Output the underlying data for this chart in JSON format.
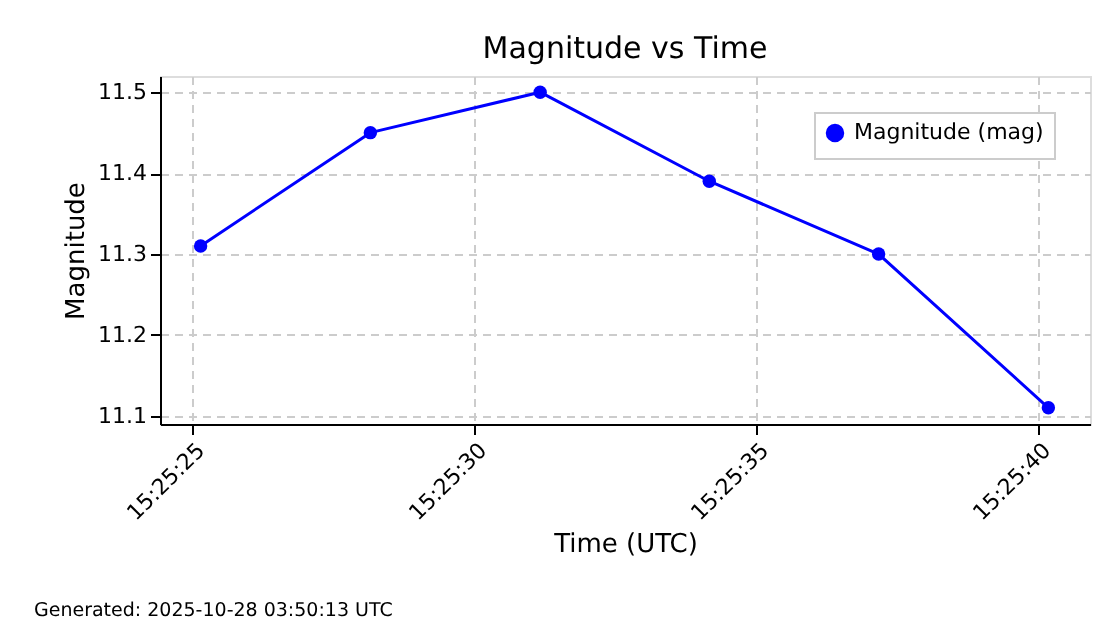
{
  "chart_data": {
    "type": "line",
    "title": "Magnitude vs Time",
    "xlabel": "Time (UTC)",
    "ylabel": "Magnitude",
    "x": [
      15.423653,
      15.424489,
      15.425325,
      15.426158,
      15.426992,
      15.427828
    ],
    "series": [
      {
        "name": "Magnitude (mag)",
        "color": "#0000ff",
        "values": [
          11.31,
          11.45,
          11.5,
          11.39,
          11.3,
          11.11
        ]
      }
    ],
    "xlim": [
      15.423453,
      15.428033
    ],
    "xticks": [
      {
        "value": 15.423611,
        "label": "15:25:25"
      },
      {
        "value": 15.425,
        "label": "15:25:30"
      },
      {
        "value": 15.426389,
        "label": "15:25:35"
      },
      {
        "value": 15.427778,
        "label": "15:25:40"
      }
    ],
    "ylim": [
      11.09,
      11.52
    ],
    "yticks": [
      11.1,
      11.2,
      11.3,
      11.4,
      11.5
    ],
    "grid": true,
    "legend": "top right",
    "marker": "circle",
    "line_style": "solid",
    "annotations": [
      "Generated: 2025-10-28 03:50:13 UTC"
    ]
  }
}
